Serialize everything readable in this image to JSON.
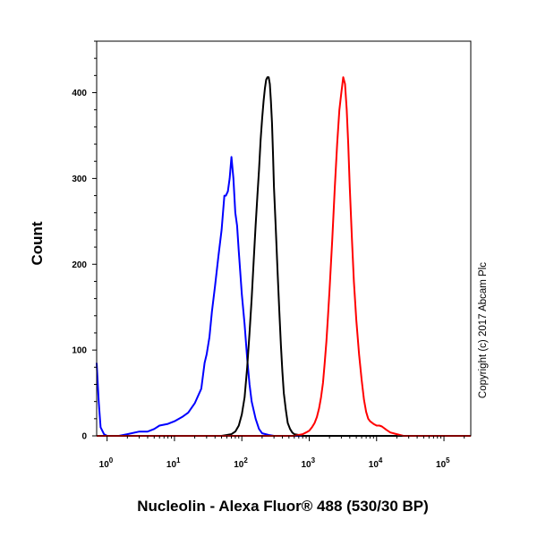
{
  "chart_data": {
    "type": "line",
    "title": "",
    "xlabel": "Nucleolin - Alexa Fluor® 488 (530/30 BP)",
    "ylabel": "Count",
    "x_scale": "log",
    "xlim": [
      0.7,
      250000
    ],
    "ylim": [
      0,
      460
    ],
    "grid": false,
    "legend": "none",
    "x_tick_labels": [
      {
        "base": "10",
        "exp": "0",
        "value": 1
      },
      {
        "base": "10",
        "exp": "1",
        "value": 10
      },
      {
        "base": "10",
        "exp": "2",
        "value": 100
      },
      {
        "base": "10",
        "exp": "3",
        "value": 1000
      },
      {
        "base": "10",
        "exp": "4",
        "value": 10000
      },
      {
        "base": "10",
        "exp": "5",
        "value": 100000
      }
    ],
    "y_tick_labels": [
      {
        "text": "0",
        "value": 0
      },
      {
        "text": "100",
        "value": 100
      },
      {
        "text": "200",
        "value": 200
      },
      {
        "text": "300",
        "value": 300
      },
      {
        "text": "400",
        "value": 400
      }
    ],
    "series": [
      {
        "color": "#0000ff",
        "x": [
          0.7,
          0.75,
          0.8,
          0.9,
          1.0,
          1.5,
          2,
          3,
          4,
          5,
          6,
          8,
          10,
          13,
          16,
          20,
          25,
          28,
          30,
          33,
          36,
          40,
          45,
          50,
          55,
          58,
          62,
          66,
          70,
          75,
          80,
          85,
          90,
          100,
          110,
          120,
          130,
          140,
          160,
          180,
          200,
          250,
          300,
          1000,
          250000
        ],
        "y": [
          85,
          40,
          10,
          2,
          0,
          0,
          2,
          5,
          5,
          8,
          12,
          14,
          17,
          22,
          27,
          38,
          55,
          85,
          95,
          115,
          145,
          175,
          210,
          240,
          280,
          280,
          285,
          300,
          325,
          300,
          260,
          245,
          215,
          165,
          130,
          90,
          60,
          40,
          20,
          8,
          3,
          1,
          0,
          0,
          0
        ]
      },
      {
        "color": "#000000",
        "x": [
          0.7,
          50,
          70,
          80,
          90,
          100,
          110,
          120,
          130,
          140,
          150,
          160,
          170,
          180,
          190,
          200,
          210,
          220,
          230,
          240,
          250,
          260,
          270,
          280,
          290,
          300,
          320,
          340,
          360,
          380,
          400,
          420,
          450,
          480,
          520,
          560,
          600,
          700,
          800,
          250000
        ],
        "y": [
          0,
          0,
          2,
          5,
          12,
          25,
          45,
          80,
          120,
          160,
          205,
          245,
          280,
          310,
          345,
          370,
          390,
          405,
          415,
          418,
          418,
          410,
          390,
          365,
          330,
          290,
          240,
          190,
          145,
          105,
          75,
          50,
          30,
          15,
          8,
          4,
          2,
          1,
          0,
          0
        ]
      },
      {
        "color": "#ff0000",
        "x": [
          0.7,
          600,
          700,
          800,
          900,
          1000,
          1100,
          1200,
          1300,
          1400,
          1500,
          1600,
          1700,
          1800,
          1900,
          2000,
          2200,
          2400,
          2600,
          2800,
          3000,
          3200,
          3400,
          3600,
          3800,
          4000,
          4300,
          4600,
          5000,
          5500,
          6000,
          6500,
          7000,
          7500,
          8000,
          9000,
          10000,
          11000,
          12000,
          14000,
          16000,
          20000,
          25000,
          250000
        ],
        "y": [
          0,
          0,
          1,
          2,
          4,
          6,
          10,
          15,
          22,
          32,
          45,
          62,
          85,
          110,
          140,
          170,
          230,
          290,
          340,
          380,
          400,
          418,
          410,
          380,
          340,
          290,
          230,
          180,
          135,
          95,
          65,
          42,
          28,
          20,
          17,
          14,
          12,
          12,
          11,
          7,
          4,
          2,
          0,
          0
        ]
      }
    ]
  },
  "annotations": {
    "copyright": "Copyright (c) 2017 Abcam Plc"
  }
}
